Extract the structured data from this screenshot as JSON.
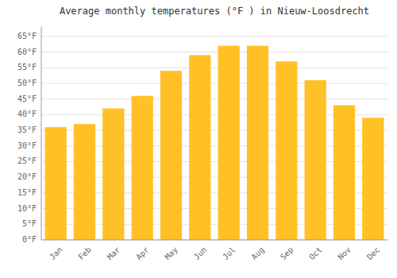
{
  "chart_data": {
    "type": "bar",
    "title": "Average monthly temperatures (°F ) in Nieuw-Loosdrecht",
    "categories": [
      "Jan",
      "Feb",
      "Mar",
      "Apr",
      "May",
      "Jun",
      "Jul",
      "Aug",
      "Sep",
      "Oct",
      "Nov",
      "Dec"
    ],
    "values": [
      36,
      37,
      42,
      46,
      54,
      59,
      62,
      62,
      57,
      51,
      43,
      39
    ],
    "color": "#FFC125",
    "ylim": [
      0,
      68
    ],
    "yticks": [
      {
        "value": 0,
        "label": "0°F"
      },
      {
        "value": 5,
        "label": "5°F"
      },
      {
        "value": 10,
        "label": "10°F"
      },
      {
        "value": 15,
        "label": "15°F"
      },
      {
        "value": 20,
        "label": "20°F"
      },
      {
        "value": 25,
        "label": "25°F"
      },
      {
        "value": 30,
        "label": "30°F"
      },
      {
        "value": 35,
        "label": "35°F"
      },
      {
        "value": 40,
        "label": "40°F"
      },
      {
        "value": 45,
        "label": "45°F"
      },
      {
        "value": 50,
        "label": "50°F"
      },
      {
        "value": 55,
        "label": "55°F"
      },
      {
        "value": 60,
        "label": "60°F"
      },
      {
        "value": 65,
        "label": "65°F"
      }
    ],
    "grid": true
  }
}
